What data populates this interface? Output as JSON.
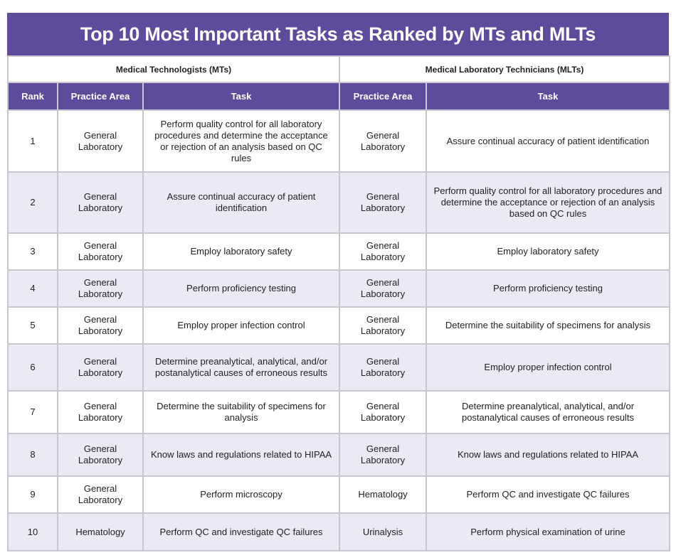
{
  "title": "Top 10 Most Important Tasks as Ranked by MTs and MLTs",
  "group_headers": [
    "Medical Technologists (MTs)",
    "Medical Laboratory Technicians (MLTs)"
  ],
  "column_headers": [
    "Rank",
    "Practice Area",
    "Task",
    "Practice Area",
    "Task"
  ],
  "rows": [
    [
      "1",
      "General Laboratory",
      "Perform quality control for all laboratory procedures and determine the acceptance or rejection of an analysis based on QC rules",
      "General Laboratory",
      "Assure continual accuracy of patient identification"
    ],
    [
      "2",
      "General Laboratory",
      "Assure continual accuracy of patient identification",
      "General Laboratory",
      "Perform quality control for all laboratory procedures and determine the acceptance or rejection of an analysis based on QC rules"
    ],
    [
      "3",
      "General Laboratory",
      "Employ laboratory safety",
      "General Laboratory",
      "Employ laboratory safety"
    ],
    [
      "4",
      "General Laboratory",
      "Perform proficiency testing",
      "General Laboratory",
      "Perform proficiency testing"
    ],
    [
      "5",
      "General Laboratory",
      "Employ proper infection control",
      "General Laboratory",
      "Determine the suitability of specimens for analysis"
    ],
    [
      "6",
      "General Laboratory",
      "Determine preanalytical, analytical, and/or postanalytical causes of erroneous results",
      "General Laboratory",
      "Employ proper infection control"
    ],
    [
      "7",
      "General Laboratory",
      "Determine the suitability of specimens for analysis",
      "General Laboratory",
      "Determine preanalytical, analytical, and/or postanalytical causes of erroneous results"
    ],
    [
      "8",
      "General Laboratory",
      "Know laws and regulations related to HIPAA",
      "General Laboratory",
      "Know laws and regulations related to HIPAA"
    ],
    [
      "9",
      "General Laboratory",
      "Perform microscopy",
      "Hematology",
      "Perform QC and investigate QC failures"
    ],
    [
      "10",
      "Hematology",
      "Perform QC and investigate QC failures",
      "Urinalysis",
      "Perform physical examination of urine"
    ]
  ]
}
